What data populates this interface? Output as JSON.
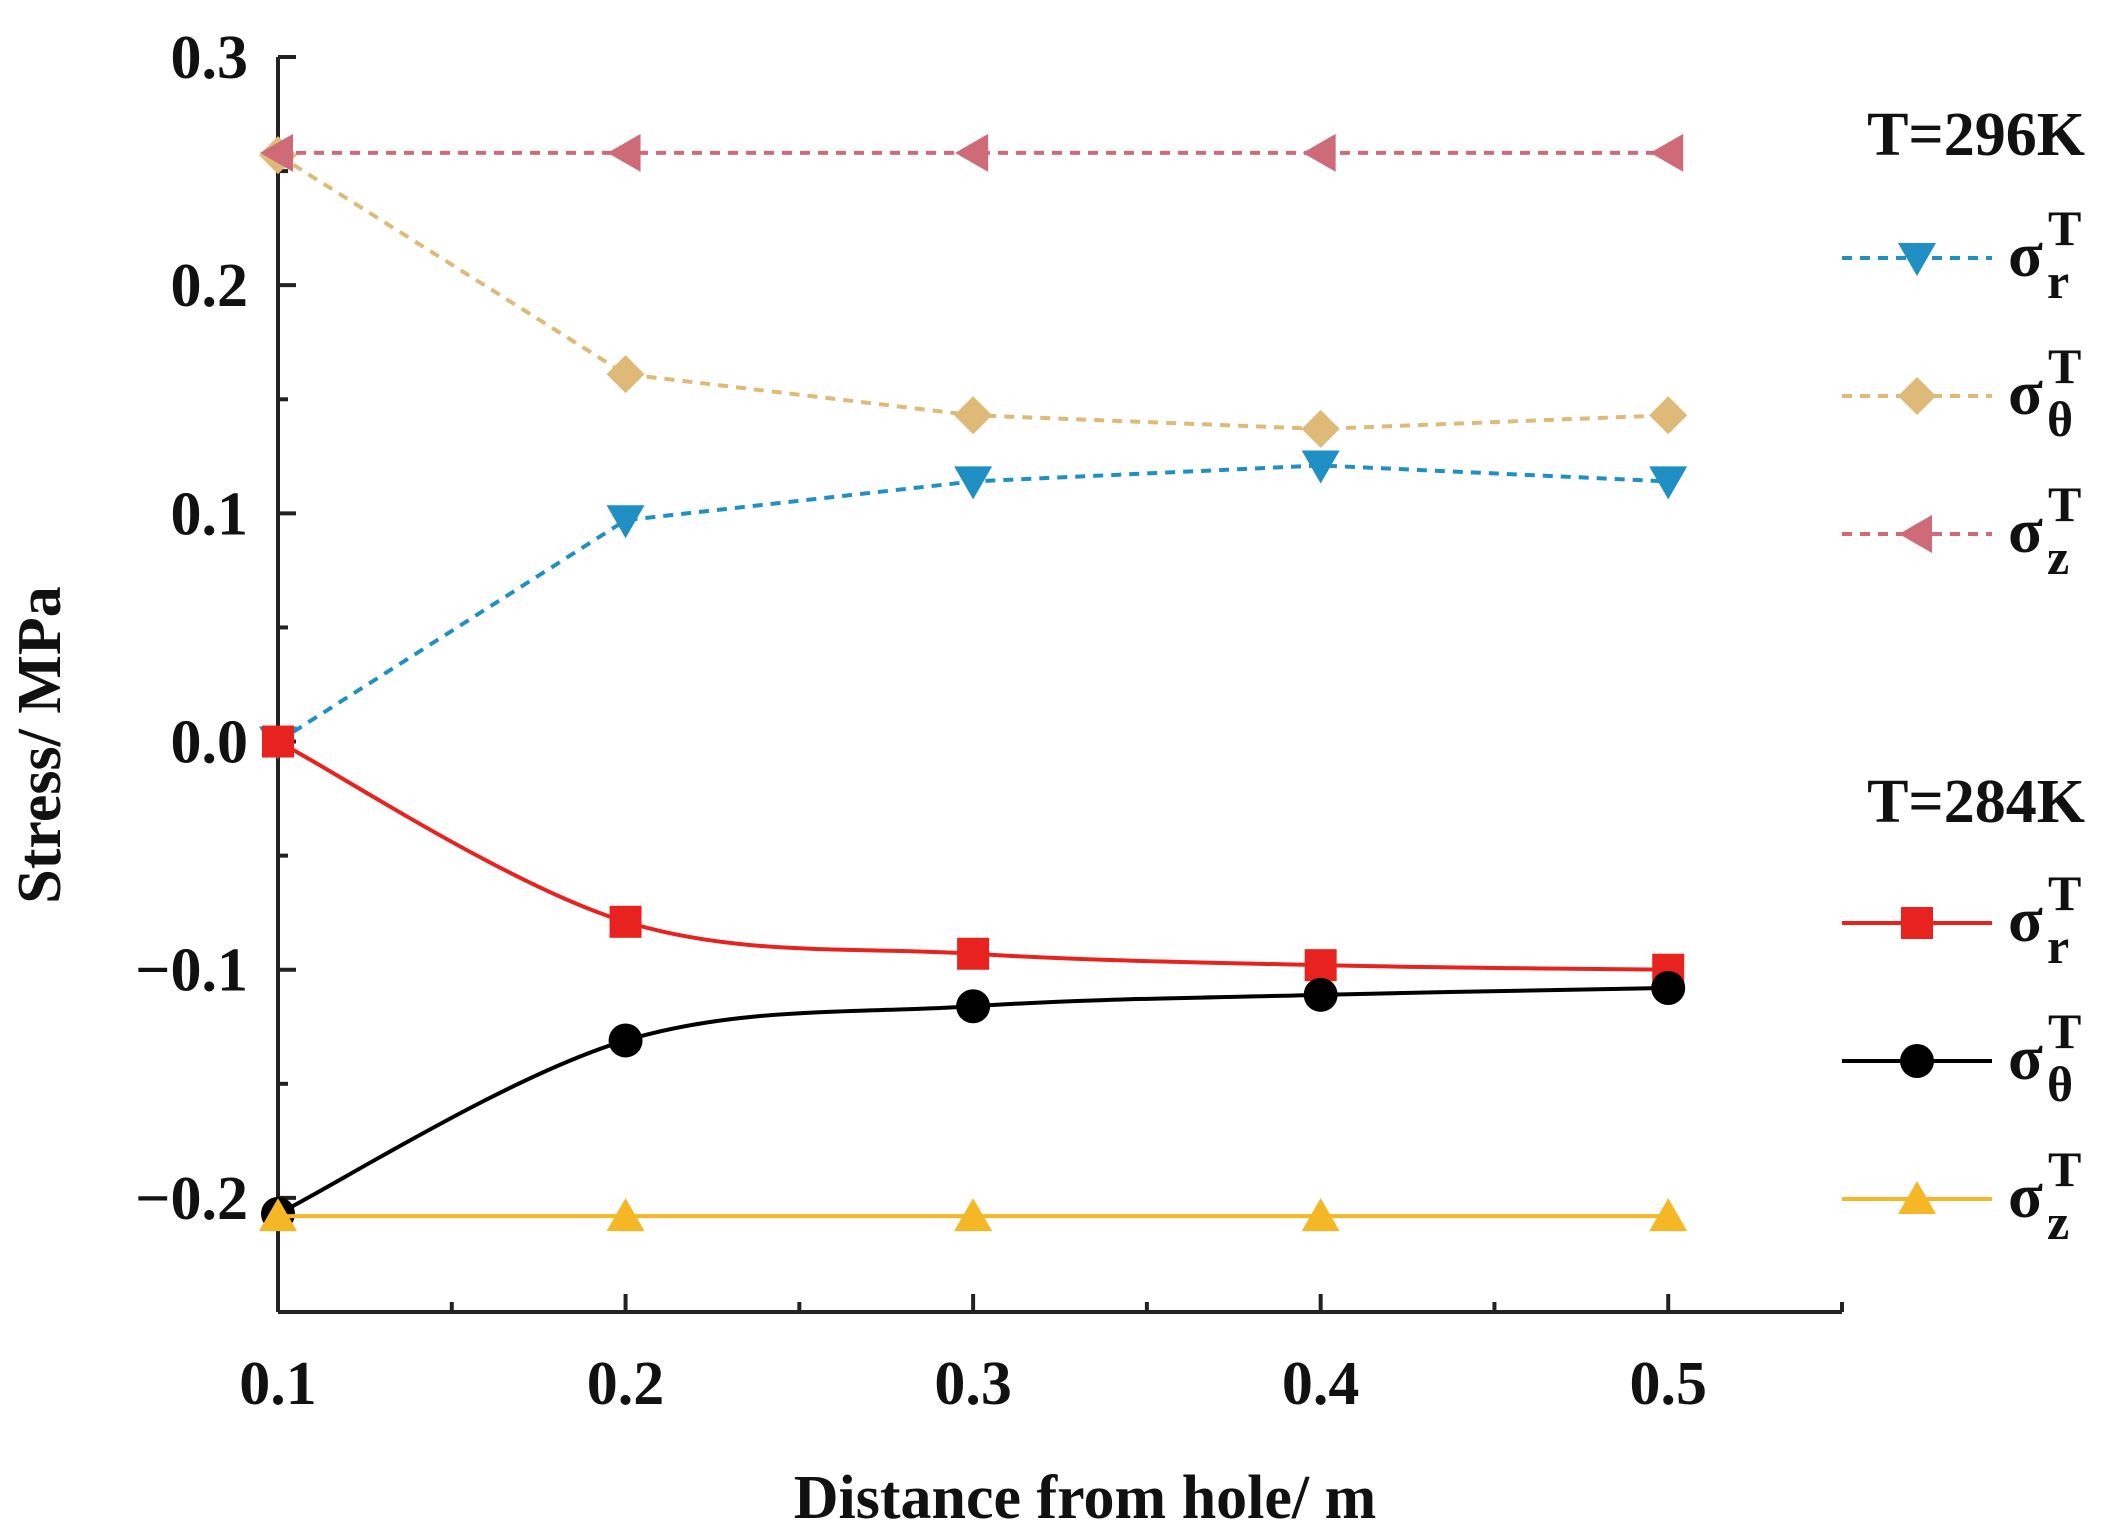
{
  "chart_data": {
    "type": "line",
    "title": "",
    "xlabel": "Distance from hole/ m",
    "ylabel": "Stress/ MPa",
    "xlim": [
      0.1,
      0.55
    ],
    "ylim": [
      -0.25,
      0.3
    ],
    "x": [
      0.1,
      0.2,
      0.3,
      0.4,
      0.5
    ],
    "xticks": [
      0.1,
      0.2,
      0.3,
      0.4,
      0.5
    ],
    "xtick_labels": [
      "0.1",
      "0.2",
      "0.3",
      "0.4",
      "0.5"
    ],
    "yticks": [
      -0.2,
      -0.1,
      0.0,
      0.1,
      0.2,
      0.3
    ],
    "ytick_labels": [
      "−0.2",
      "−0.1",
      "0.0",
      "0.1",
      "0.2",
      "0.3"
    ],
    "grid": false,
    "legend_groups": [
      {
        "title": "T=296K",
        "position": "top-right"
      },
      {
        "title": "T=284K",
        "position": "bottom-right"
      }
    ],
    "series": [
      {
        "group": 0,
        "name": "σrT",
        "symbol": "σ",
        "sub": "r",
        "sup": "T",
        "values": [
          0.0,
          0.097,
          0.114,
          0.121,
          0.114
        ],
        "color": "#1f8fc4",
        "marker": "triangle-down",
        "dashed": true
      },
      {
        "group": 0,
        "name": "σθT",
        "symbol": "σ",
        "sub": "θ",
        "sup": "T",
        "values": [
          0.257,
          0.161,
          0.143,
          0.137,
          0.143
        ],
        "color": "#dfb978",
        "marker": "diamond",
        "dashed": true
      },
      {
        "group": 0,
        "name": "σzT",
        "symbol": "σ",
        "sub": "z",
        "sup": "T",
        "values": [
          0.258,
          0.258,
          0.258,
          0.258,
          0.258
        ],
        "color": "#cf6b78",
        "marker": "triangle-left",
        "dashed": true
      },
      {
        "group": 1,
        "name": "σrT",
        "symbol": "σ",
        "sub": "r",
        "sup": "T",
        "values": [
          0.0,
          -0.079,
          -0.093,
          -0.098,
          -0.1
        ],
        "color": "#e8231f",
        "marker": "square",
        "dashed": false
      },
      {
        "group": 1,
        "name": "σθT",
        "symbol": "σ",
        "sub": "θ",
        "sup": "T",
        "values": [
          -0.207,
          -0.131,
          -0.116,
          -0.111,
          -0.108
        ],
        "color": "#000000",
        "marker": "circle",
        "dashed": false
      },
      {
        "group": 1,
        "name": "σzT",
        "symbol": "σ",
        "sub": "z",
        "sup": "T",
        "values": [
          -0.208,
          -0.208,
          -0.208,
          -0.208,
          -0.208
        ],
        "color": "#f6b726",
        "marker": "triangle-up",
        "dashed": false
      }
    ]
  }
}
